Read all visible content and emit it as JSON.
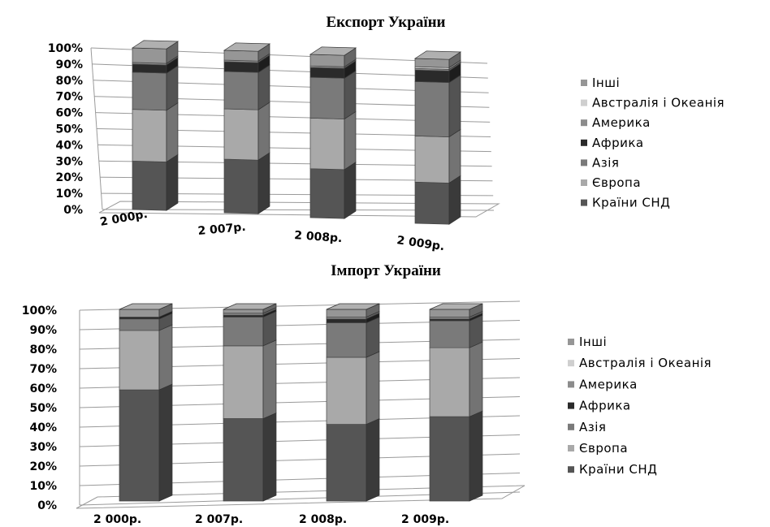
{
  "chart_data": [
    {
      "type": "bar",
      "stacked": true,
      "percent_stacked": true,
      "three_d": true,
      "title": "Експорт України",
      "categories": [
        "2 000р.",
        "2 007р.",
        "2 008р.",
        "2 009р."
      ],
      "y_tick_labels": [
        "0%",
        "10%",
        "20%",
        "30%",
        "40%",
        "50%",
        "60%",
        "70%",
        "80%",
        "90%",
        "100%"
      ],
      "ylim": [
        0,
        100
      ],
      "grid": true,
      "legend_position": "right",
      "legend": [
        "Інші",
        "Австралія і Океанія",
        "Америка",
        "Африка",
        "Азія",
        "Європа",
        "Країни СНД"
      ],
      "series": [
        {
          "name": "Країни СНД",
          "color": "#555555",
          "values": [
            30,
            33,
            30,
            25
          ]
        },
        {
          "name": "Європа",
          "color": "#a9a9a9",
          "values": [
            32,
            31,
            31,
            28
          ]
        },
        {
          "name": "Азія",
          "color": "#7a7a7a",
          "values": [
            23,
            23,
            25,
            33
          ]
        },
        {
          "name": "Африка",
          "color": "#2a2a2a",
          "values": [
            5,
            6,
            6,
            7
          ]
        },
        {
          "name": "Америка",
          "color": "#8c8c8c",
          "values": [
            1,
            1,
            1,
            1
          ]
        },
        {
          "name": "Австралія і Океанія",
          "color": "#cfcfcf",
          "values": [
            0,
            0,
            0,
            1
          ]
        },
        {
          "name": "Інші",
          "color": "#969696",
          "values": [
            9,
            6,
            7,
            5
          ]
        }
      ]
    },
    {
      "type": "bar",
      "stacked": true,
      "percent_stacked": true,
      "three_d": true,
      "title": "Імпорт України",
      "categories": [
        "2 000р.",
        "2 007р.",
        "2 008р.",
        "2 009р."
      ],
      "y_tick_labels": [
        "0%",
        "10%",
        "20%",
        "30%",
        "40%",
        "50%",
        "60%",
        "70%",
        "80%",
        "90%",
        "100%"
      ],
      "ylim": [
        0,
        100
      ],
      "grid": true,
      "legend_position": "right",
      "legend": [
        "Інші",
        "Австралія і Океанія",
        "Америка",
        "Африка",
        "Азія",
        "Європа",
        "Країни СНД"
      ],
      "series": [
        {
          "name": "Країни СНД",
          "color": "#555555",
          "values": [
            58,
            43,
            40,
            44
          ]
        },
        {
          "name": "Європа",
          "color": "#a9a9a9",
          "values": [
            31,
            38,
            35,
            36
          ]
        },
        {
          "name": "Азія",
          "color": "#7a7a7a",
          "values": [
            6,
            15,
            18,
            14
          ]
        },
        {
          "name": "Африка",
          "color": "#2a2a2a",
          "values": [
            1,
            1,
            2,
            1
          ]
        },
        {
          "name": "Америка",
          "color": "#8c8c8c",
          "values": [
            0,
            1,
            1,
            1
          ]
        },
        {
          "name": "Австралія і Океанія",
          "color": "#cfcfcf",
          "values": [
            0,
            0,
            0,
            0
          ]
        },
        {
          "name": "Інші",
          "color": "#969696",
          "values": [
            4,
            2,
            4,
            4
          ]
        }
      ]
    }
  ]
}
